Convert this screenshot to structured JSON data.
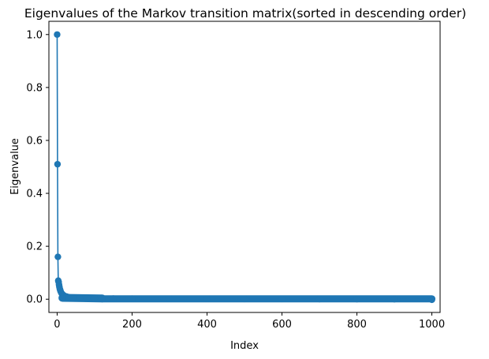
{
  "chart_data": {
    "type": "line",
    "title": "Eigenvalues of the Markov transition matrix(sorted in descending order)",
    "xlabel": "Index",
    "ylabel": "Eigenvalue",
    "xlim": [
      -22,
      1022
    ],
    "ylim": [
      -0.05,
      1.05
    ],
    "xticks": [
      0,
      200,
      400,
      600,
      800,
      1000
    ],
    "yticks": [
      0.0,
      0.2,
      0.4,
      0.6,
      0.8,
      1.0
    ],
    "xtick_labels": [
      "0",
      "200",
      "400",
      "600",
      "800",
      "1000"
    ],
    "ytick_labels": [
      "0.0",
      "0.2",
      "0.4",
      "0.6",
      "0.8",
      "1.0"
    ],
    "grid": false,
    "marker": "circle",
    "color": "#1f77b4",
    "series": [
      {
        "x": [
          0,
          1,
          2,
          3,
          4,
          5,
          6,
          7,
          8,
          9,
          10,
          12,
          14,
          16,
          18,
          20,
          25,
          30,
          40,
          50,
          60,
          80,
          100,
          120,
          150,
          200,
          300,
          400,
          500,
          600,
          700,
          800,
          900,
          1000
        ],
        "values": [
          1.0,
          0.51,
          0.16,
          0.07,
          0.065,
          0.055,
          0.047,
          0.04,
          0.035,
          0.031,
          0.027,
          0.022,
          0.019,
          0.016,
          0.014,
          0.012,
          0.01,
          0.008,
          0.006,
          0.005,
          0.0045,
          0.004,
          0.0035,
          0.003,
          0.0025,
          0.002,
          0.0015,
          0.0012,
          0.001,
          0.0008,
          0.0006,
          0.0004,
          0.0002,
          -0.002
        ]
      }
    ]
  }
}
